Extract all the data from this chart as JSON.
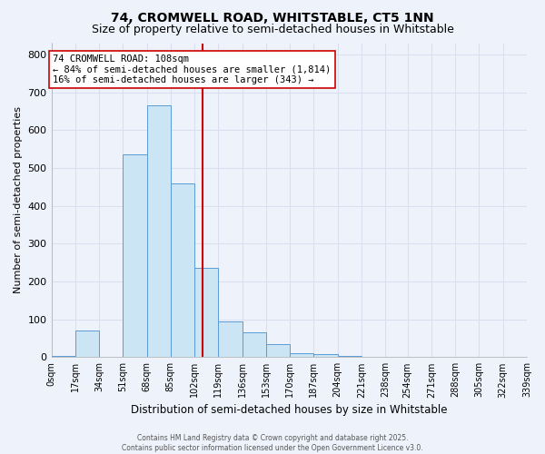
{
  "title": "74, CROMWELL ROAD, WHITSTABLE, CT5 1NN",
  "subtitle": "Size of property relative to semi-detached houses in Whitstable",
  "xlabel": "Distribution of semi-detached houses by size in Whitstable",
  "ylabel": "Number of semi-detached properties",
  "footer_line1": "Contains HM Land Registry data © Crown copyright and database right 2025.",
  "footer_line2": "Contains public sector information licensed under the Open Government Licence v3.0.",
  "annotation_title": "74 CROMWELL ROAD: 108sqm",
  "annotation_line2": "← 84% of semi-detached houses are smaller (1,814)",
  "annotation_line3": "16% of semi-detached houses are larger (343) →",
  "bin_edges": [
    0,
    17,
    34,
    51,
    68,
    85,
    102,
    119,
    136,
    153,
    170,
    187,
    204,
    221,
    238,
    254,
    271,
    288,
    305,
    322,
    339
  ],
  "bin_counts": [
    2,
    70,
    0,
    535,
    665,
    460,
    235,
    95,
    65,
    35,
    10,
    8,
    3,
    1,
    1,
    0,
    0,
    0,
    0,
    0
  ],
  "bar_facecolor": "#cce5f5",
  "bar_edgecolor": "#5b9bd5",
  "vline_x": 108,
  "vline_color": "#cc0000",
  "bg_color": "#eef2fb",
  "grid_color": "#d8e0ef",
  "ylim": [
    0,
    830
  ],
  "yticks": [
    0,
    100,
    200,
    300,
    400,
    500,
    600,
    700,
    800
  ],
  "title_fontsize": 10,
  "subtitle_fontsize": 9
}
